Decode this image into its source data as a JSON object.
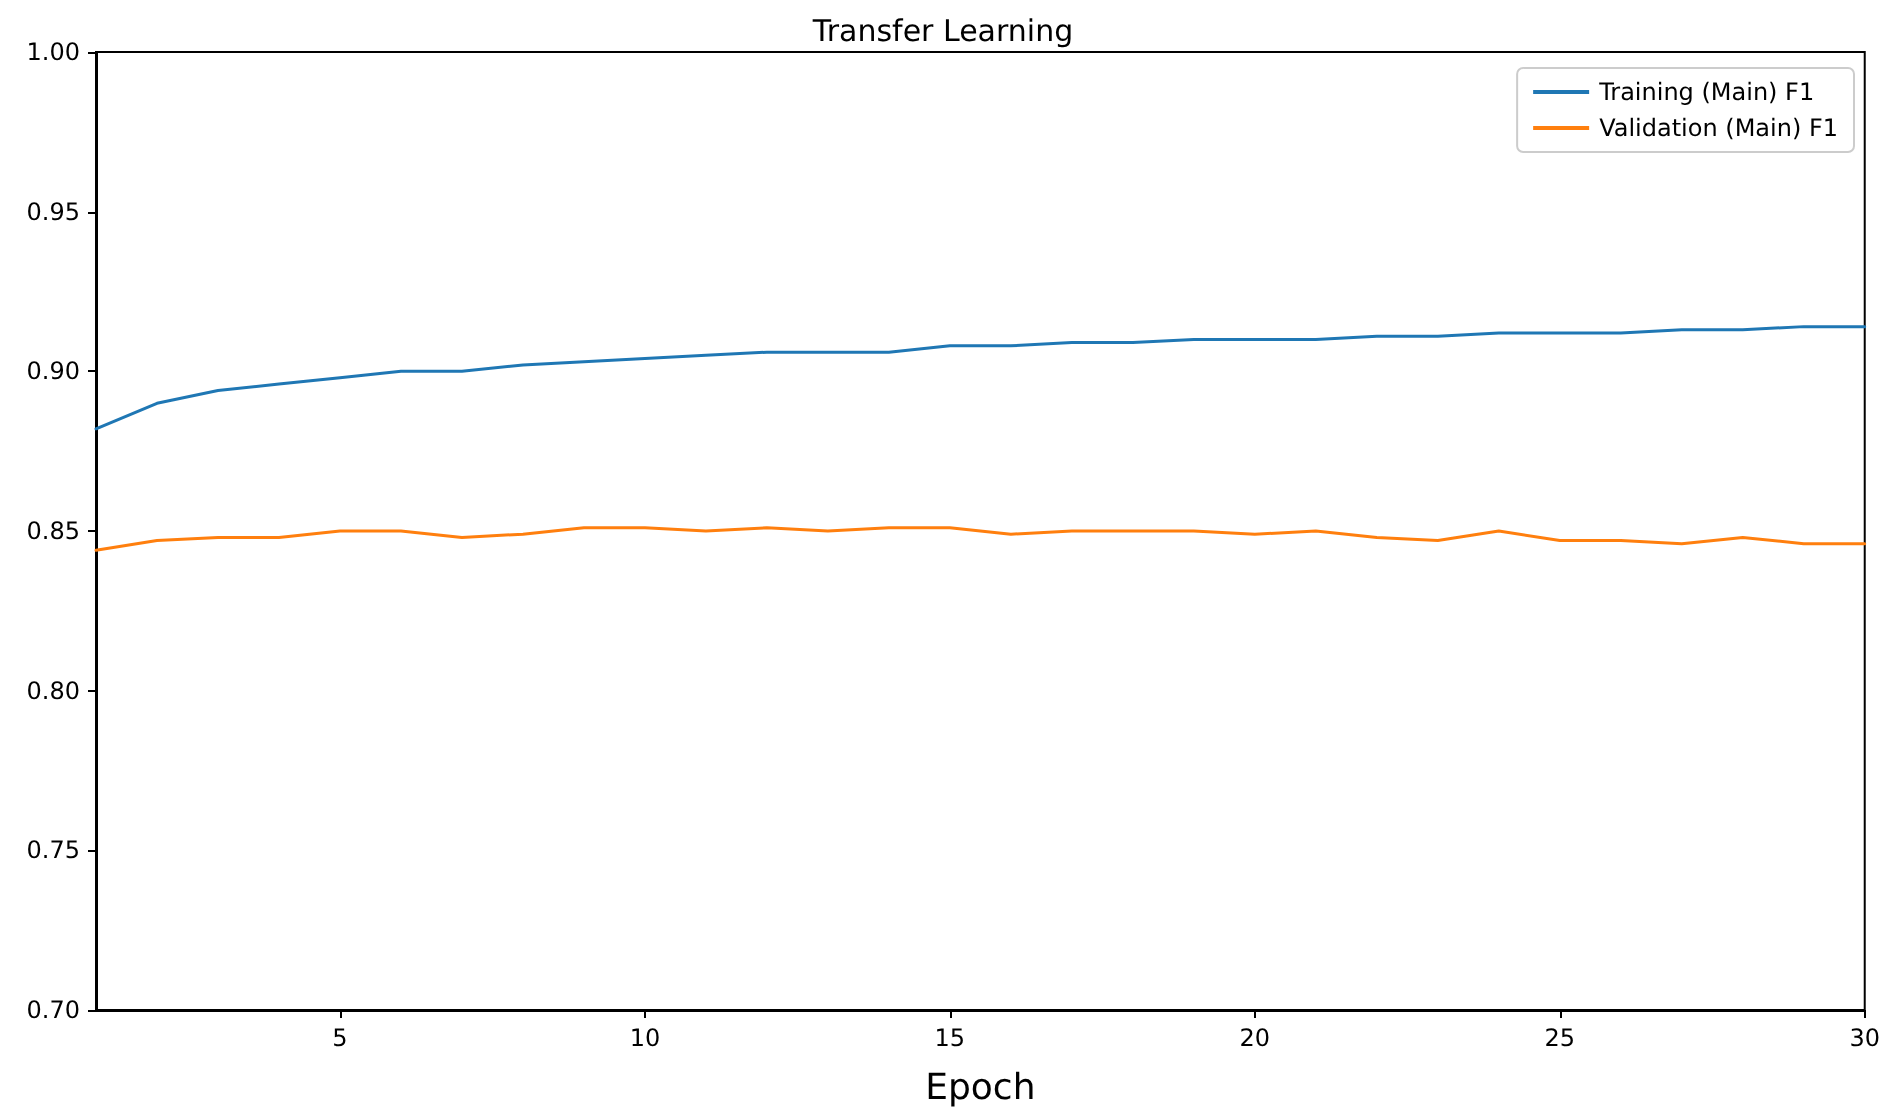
{
  "chart_data": {
    "type": "line",
    "title": "Transfer Learning",
    "xlabel": "Epoch",
    "x": [
      1,
      2,
      3,
      4,
      5,
      6,
      7,
      8,
      9,
      10,
      11,
      12,
      13,
      14,
      15,
      16,
      17,
      18,
      19,
      20,
      21,
      22,
      23,
      24,
      25,
      26,
      27,
      28,
      29,
      30
    ],
    "series": [
      {
        "name": "Training (Main) F1",
        "color": "#1f77b4",
        "values": [
          0.882,
          0.89,
          0.894,
          0.896,
          0.898,
          0.9,
          0.9,
          0.902,
          0.903,
          0.904,
          0.905,
          0.906,
          0.906,
          0.906,
          0.908,
          0.908,
          0.909,
          0.909,
          0.91,
          0.91,
          0.91,
          0.911,
          0.911,
          0.912,
          0.912,
          0.912,
          0.913,
          0.913,
          0.914,
          0.914
        ]
      },
      {
        "name": "Validation (Main) F1",
        "color": "#ff7f0e",
        "values": [
          0.844,
          0.847,
          0.848,
          0.848,
          0.85,
          0.85,
          0.848,
          0.849,
          0.851,
          0.851,
          0.85,
          0.851,
          0.85,
          0.851,
          0.851,
          0.849,
          0.85,
          0.85,
          0.85,
          0.849,
          0.85,
          0.848,
          0.847,
          0.85,
          0.847,
          0.847,
          0.846,
          0.848,
          0.846,
          0.846
        ]
      }
    ],
    "xlim": [
      1,
      30
    ],
    "xticks": [
      5,
      10,
      15,
      20,
      25,
      30
    ],
    "ylim": [
      0.7,
      1.0
    ],
    "yticks": [
      {
        "value": 0.7,
        "label": "0.70"
      },
      {
        "value": 0.75,
        "label": "0.75"
      },
      {
        "value": 0.8,
        "label": "0.80"
      },
      {
        "value": 0.85,
        "label": "0.85"
      },
      {
        "value": 0.9,
        "label": "0.90"
      },
      {
        "value": 0.95,
        "label": "0.95"
      },
      {
        "value": 1.0,
        "label": "1.00"
      }
    ],
    "grid": false,
    "legend": "top right",
    "marker": "none",
    "line_style": "solid"
  }
}
